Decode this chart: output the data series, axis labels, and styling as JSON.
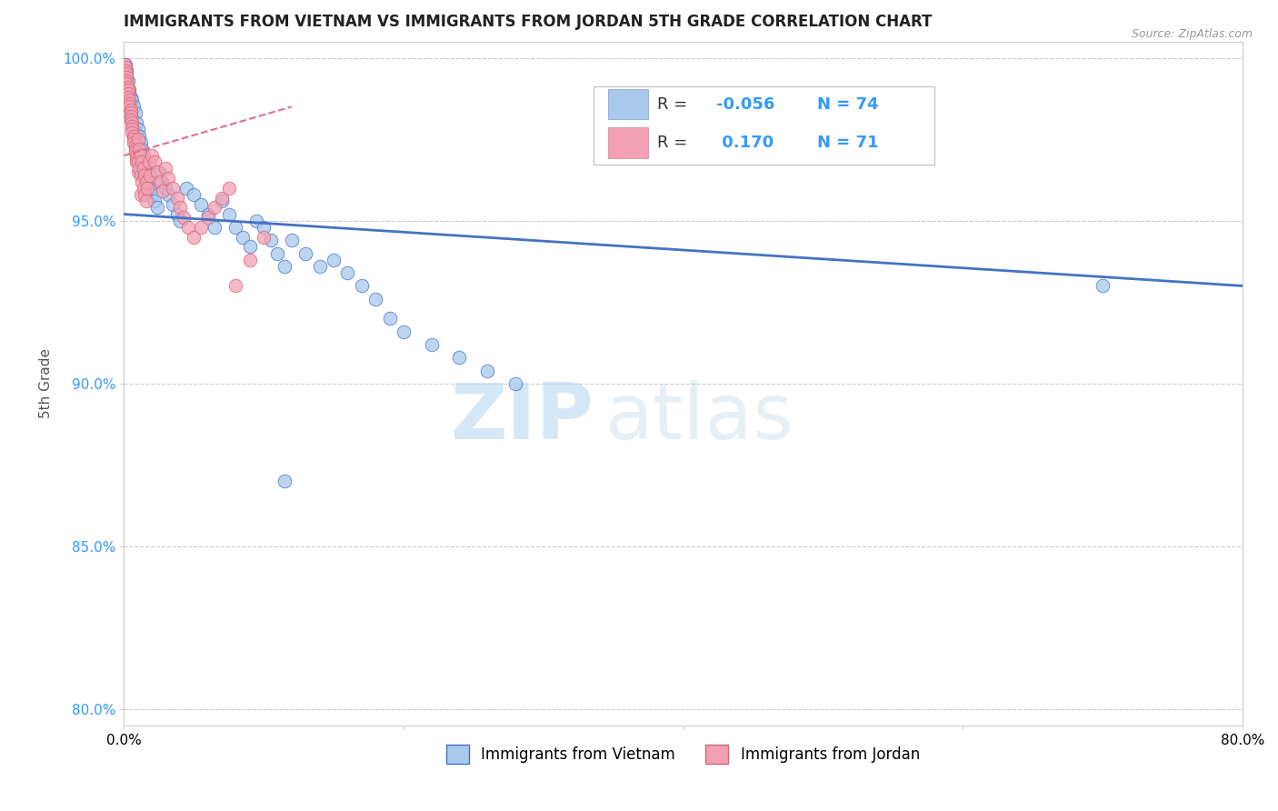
{
  "title": "IMMIGRANTS FROM VIETNAM VS IMMIGRANTS FROM JORDAN 5TH GRADE CORRELATION CHART",
  "source": "Source: ZipAtlas.com",
  "ylabel": "5th Grade",
  "xlim": [
    0.0,
    0.8
  ],
  "ylim": [
    0.795,
    1.005
  ],
  "x_tick_positions": [
    0.0,
    0.2,
    0.4,
    0.6,
    0.8
  ],
  "x_tick_labels": [
    "0.0%",
    "",
    "",
    "",
    "80.0%"
  ],
  "y_tick_positions": [
    0.8,
    0.85,
    0.9,
    0.95,
    1.0
  ],
  "y_tick_labels": [
    "80.0%",
    "85.0%",
    "90.0%",
    "95.0%",
    "100.0%"
  ],
  "R_vietnam": -0.056,
  "N_vietnam": 74,
  "R_jordan": 0.17,
  "N_jordan": 71,
  "color_vietnam": "#A8C8EC",
  "color_jordan": "#F4A0B4",
  "trendline_vietnam_color": "#4472C4",
  "trendline_jordan_color": "#E07090",
  "legend_label_vietnam": "Immigrants from Vietnam",
  "legend_label_jordan": "Immigrants from Jordan",
  "watermark_zip": "ZIP",
  "watermark_atlas": "atlas",
  "vietnam_x": [
    0.001,
    0.001,
    0.001,
    0.002,
    0.002,
    0.002,
    0.003,
    0.003,
    0.004,
    0.004,
    0.005,
    0.005,
    0.006,
    0.006,
    0.007,
    0.007,
    0.008,
    0.008,
    0.009,
    0.01,
    0.01,
    0.011,
    0.011,
    0.012,
    0.012,
    0.013,
    0.013,
    0.014,
    0.015,
    0.015,
    0.016,
    0.017,
    0.018,
    0.019,
    0.02,
    0.022,
    0.024,
    0.025,
    0.027,
    0.03,
    0.032,
    0.035,
    0.038,
    0.04,
    0.045,
    0.05,
    0.055,
    0.06,
    0.065,
    0.07,
    0.075,
    0.08,
    0.085,
    0.09,
    0.095,
    0.1,
    0.105,
    0.11,
    0.115,
    0.12,
    0.13,
    0.14,
    0.15,
    0.16,
    0.17,
    0.18,
    0.19,
    0.2,
    0.22,
    0.24,
    0.26,
    0.28,
    0.115,
    0.7
  ],
  "vietnam_y": [
    0.998,
    0.994,
    0.989,
    0.996,
    0.991,
    0.986,
    0.993,
    0.988,
    0.99,
    0.985,
    0.988,
    0.982,
    0.987,
    0.981,
    0.985,
    0.979,
    0.983,
    0.977,
    0.98,
    0.978,
    0.972,
    0.976,
    0.97,
    0.974,
    0.968,
    0.972,
    0.966,
    0.97,
    0.968,
    0.963,
    0.966,
    0.964,
    0.962,
    0.96,
    0.958,
    0.956,
    0.954,
    0.965,
    0.962,
    0.96,
    0.958,
    0.955,
    0.952,
    0.95,
    0.96,
    0.958,
    0.955,
    0.952,
    0.948,
    0.956,
    0.952,
    0.948,
    0.945,
    0.942,
    0.95,
    0.948,
    0.944,
    0.94,
    0.936,
    0.944,
    0.94,
    0.936,
    0.938,
    0.934,
    0.93,
    0.926,
    0.92,
    0.916,
    0.912,
    0.908,
    0.904,
    0.9,
    0.87,
    0.93
  ],
  "jordan_x": [
    0.0005,
    0.001,
    0.001,
    0.0015,
    0.002,
    0.002,
    0.002,
    0.003,
    0.003,
    0.003,
    0.003,
    0.004,
    0.004,
    0.004,
    0.005,
    0.005,
    0.005,
    0.005,
    0.006,
    0.006,
    0.006,
    0.006,
    0.007,
    0.007,
    0.007,
    0.008,
    0.008,
    0.008,
    0.009,
    0.009,
    0.009,
    0.01,
    0.01,
    0.01,
    0.011,
    0.011,
    0.012,
    0.012,
    0.012,
    0.013,
    0.013,
    0.014,
    0.014,
    0.015,
    0.015,
    0.016,
    0.016,
    0.017,
    0.018,
    0.019,
    0.02,
    0.022,
    0.024,
    0.026,
    0.028,
    0.03,
    0.032,
    0.035,
    0.038,
    0.04,
    0.043,
    0.046,
    0.05,
    0.055,
    0.06,
    0.065,
    0.07,
    0.075,
    0.08,
    0.09,
    0.1
  ],
  "jordan_y": [
    0.998,
    0.997,
    0.996,
    0.995,
    0.994,
    0.993,
    0.992,
    0.991,
    0.99,
    0.989,
    0.988,
    0.987,
    0.986,
    0.985,
    0.984,
    0.983,
    0.982,
    0.981,
    0.98,
    0.979,
    0.978,
    0.977,
    0.976,
    0.975,
    0.974,
    0.973,
    0.972,
    0.971,
    0.97,
    0.969,
    0.968,
    0.975,
    0.968,
    0.965,
    0.972,
    0.966,
    0.97,
    0.964,
    0.958,
    0.968,
    0.962,
    0.966,
    0.96,
    0.964,
    0.958,
    0.962,
    0.956,
    0.96,
    0.968,
    0.964,
    0.97,
    0.968,
    0.965,
    0.962,
    0.959,
    0.966,
    0.963,
    0.96,
    0.957,
    0.954,
    0.951,
    0.948,
    0.945,
    0.948,
    0.951,
    0.954,
    0.957,
    0.96,
    0.93,
    0.938,
    0.945
  ]
}
